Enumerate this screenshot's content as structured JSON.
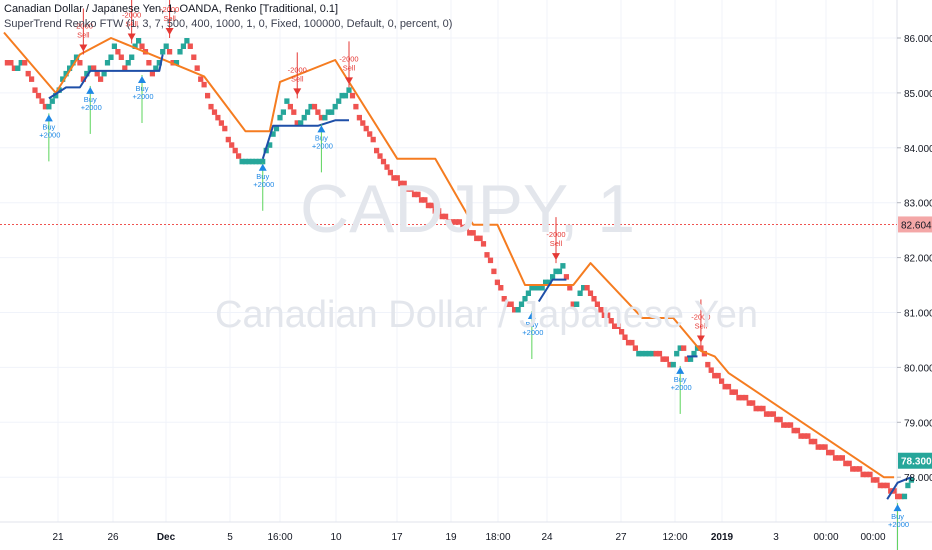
{
  "header": {
    "title": "Canadian Dollar / Japanese Yen, 1, OANDA, Renko [Traditional, 0.1]",
    "indicator": "SuperTrend Renko FTW (1, 3, 7, 500, 400, 1000, 1, 0, Fixed, 100000, Default, 0, percent, 0)"
  },
  "watermark": {
    "symbol": "CADJPY, 1",
    "name": "Canadian Dollar / Japanese Yen"
  },
  "colors": {
    "up_brick": "#26a69a",
    "down_brick": "#ef5350",
    "supertrend_up": "#1e4fa8",
    "supertrend_down": "#f57c20",
    "buy": "#1e88e5",
    "sell": "#e53935",
    "price_line": "#ef5350",
    "price_badge": "#26a69a",
    "priceline_badge": "#f4a7a7"
  },
  "chart_data": {
    "type": "renko",
    "brick_size": 0.1,
    "ylim": [
      77.2,
      86.8
    ],
    "y_ticks": [
      "86.000",
      "85.000",
      "84.000",
      "83.000",
      "82.000",
      "81.000",
      "80.000",
      "79.000",
      "78.000"
    ],
    "x_ticks": [
      "21",
      "26",
      "Dec",
      "5",
      "16:00",
      "10",
      "17",
      "19",
      "18:00",
      "24",
      "27",
      "12:00",
      "2019",
      "3",
      "00:00",
      "00:00"
    ],
    "current_price": "78.300",
    "price_line_value": "82.604",
    "renko_path": [
      [
        0,
        85.6
      ],
      [
        3,
        85.4
      ],
      [
        5,
        85.6
      ],
      [
        9,
        85.0
      ],
      [
        12,
        84.7
      ],
      [
        21,
        85.7
      ],
      [
        23,
        85.2
      ],
      [
        25,
        85.5
      ],
      [
        28,
        85.2
      ],
      [
        32,
        85.9
      ],
      [
        35,
        85.4
      ],
      [
        39,
        86.0
      ],
      [
        43,
        85.3
      ],
      [
        47,
        85.9
      ],
      [
        49,
        85.5
      ],
      [
        53,
        86.0
      ],
      [
        56,
        85.4
      ],
      [
        60,
        84.7
      ],
      [
        68,
        83.8
      ],
      [
        75,
        83.8
      ],
      [
        82,
        84.9
      ],
      [
        85,
        84.4
      ],
      [
        89,
        84.8
      ],
      [
        92,
        84.5
      ],
      [
        100,
        85.1
      ],
      [
        103,
        84.5
      ],
      [
        112,
        83.5
      ],
      [
        127,
        82.7
      ],
      [
        134,
        82.5
      ],
      [
        139,
        82.2
      ],
      [
        145,
        81.2
      ],
      [
        148,
        81.0
      ],
      [
        153,
        81.5
      ],
      [
        156,
        81.5
      ],
      [
        162,
        81.9
      ],
      [
        165,
        81.1
      ],
      [
        168,
        81.5
      ],
      [
        173,
        81.0
      ],
      [
        183,
        80.3
      ],
      [
        188,
        80.3
      ],
      [
        193,
        80.0
      ],
      [
        196,
        80.4
      ],
      [
        198,
        80.1
      ],
      [
        201,
        80.4
      ],
      [
        205,
        79.9
      ],
      [
        209,
        79.6
      ],
      [
        260,
        77.6
      ],
      [
        263,
        78.0
      ]
    ],
    "supertrend_down": [
      [
        0,
        86.1
      ],
      [
        15,
        85.0
      ],
      [
        22,
        85.7
      ],
      [
        31,
        86.0
      ],
      [
        58,
        85.3
      ],
      [
        70,
        84.3
      ],
      [
        77,
        84.3
      ],
      [
        80,
        85.2
      ],
      [
        96,
        85.6
      ],
      [
        114,
        83.8
      ],
      [
        125,
        83.8
      ],
      [
        136,
        82.6
      ],
      [
        143,
        82.6
      ],
      [
        151,
        81.5
      ],
      [
        165,
        81.5
      ],
      [
        170,
        81.9
      ],
      [
        185,
        80.9
      ],
      [
        194,
        80.9
      ],
      [
        202,
        80.3
      ],
      [
        206,
        80.2
      ],
      [
        210,
        79.9
      ],
      [
        255,
        78.0
      ],
      [
        258,
        78.0
      ]
    ],
    "supertrend_up": [
      [
        13,
        84.9
      ],
      [
        18,
        85.1
      ],
      [
        22,
        85.1
      ],
      [
        25,
        85.4
      ],
      [
        40,
        85.4
      ],
      [
        45,
        85.4
      ],
      [
        46,
        85.7
      ],
      [
        75,
        83.8
      ],
      [
        78,
        84.4
      ],
      [
        91,
        84.4
      ],
      [
        96,
        84.5
      ],
      [
        100,
        84.5
      ],
      [
        155,
        81.2
      ],
      [
        159,
        81.6
      ],
      [
        163,
        81.6
      ],
      [
        198,
        80.2
      ],
      [
        201,
        80.2
      ],
      [
        256,
        77.6
      ],
      [
        259,
        77.9
      ],
      [
        263,
        78.0
      ]
    ],
    "signals": [
      {
        "type": "buy",
        "i": 13,
        "price": 84.7,
        "label": "Buy",
        "value": "+2000"
      },
      {
        "type": "sell",
        "i": 23,
        "price": 85.7,
        "label": "Sell",
        "value": "-2000"
      },
      {
        "type": "buy",
        "i": 25,
        "price": 85.2,
        "label": "Buy",
        "value": "+2000"
      },
      {
        "type": "sell",
        "i": 37,
        "price": 85.9,
        "label": "Sell",
        "value": "-2000"
      },
      {
        "type": "buy",
        "i": 40,
        "price": 85.4,
        "label": "Buy",
        "value": "+2000"
      },
      {
        "type": "sell",
        "i": 48,
        "price": 86.0,
        "label": "Sell",
        "value": "-2000"
      },
      {
        "type": "buy",
        "i": 75,
        "price": 83.8,
        "label": "Buy",
        "value": "+2000"
      },
      {
        "type": "sell",
        "i": 85,
        "price": 84.9,
        "label": "Sell",
        "value": "-2000"
      },
      {
        "type": "buy",
        "i": 92,
        "price": 84.5,
        "label": "Buy",
        "value": "+2000"
      },
      {
        "type": "sell",
        "i": 100,
        "price": 85.1,
        "label": "Sell",
        "value": "-2000"
      },
      {
        "type": "buy",
        "i": 153,
        "price": 81.1,
        "label": "Buy",
        "value": "+2000"
      },
      {
        "type": "sell",
        "i": 160,
        "price": 81.9,
        "label": "Sell",
        "value": "-2000"
      },
      {
        "type": "buy",
        "i": 196,
        "price": 80.1,
        "label": "Buy",
        "value": "+2000"
      },
      {
        "type": "sell",
        "i": 202,
        "price": 80.4,
        "label": "Sell",
        "value": "-2000"
      },
      {
        "type": "buy",
        "i": 259,
        "price": 77.6,
        "label": "Buy",
        "value": "+2000"
      }
    ]
  }
}
